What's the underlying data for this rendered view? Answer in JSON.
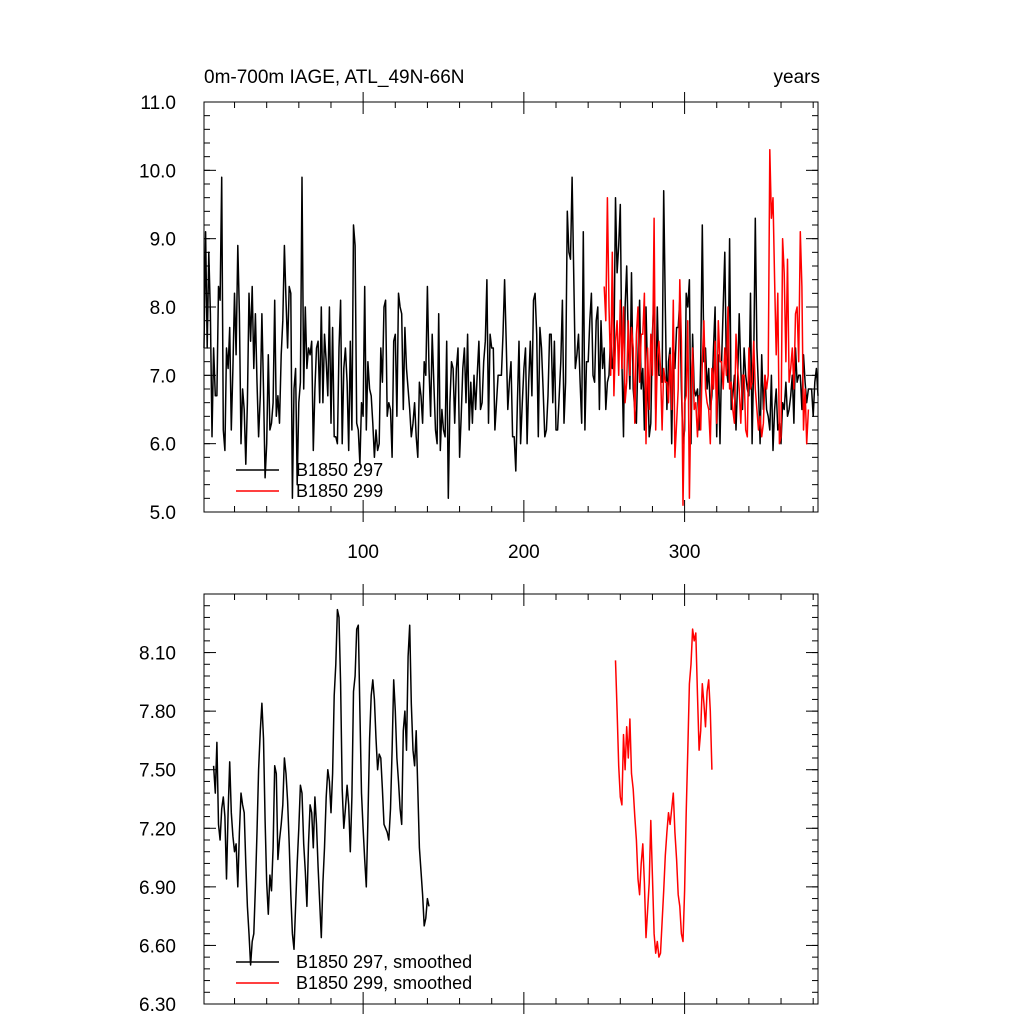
{
  "chart_data": [
    {
      "type": "line",
      "title": "0m-700m IAGE, ATL_49N-66N",
      "units": "years",
      "xlim": [
        1,
        383
      ],
      "ylim": [
        5.0,
        11.0
      ],
      "x_ticks": [
        100,
        200,
        300
      ],
      "y_ticks": [
        "5.0",
        "6.0",
        "7.0",
        "8.0",
        "9.0",
        "10.0",
        "11.0"
      ],
      "legend_position": "bottom-left",
      "series": [
        {
          "name": "B1850 297",
          "color": "#000000",
          "x_start": 1,
          "values": [
            7.4,
            9.1,
            7.4,
            8.8,
            7.9,
            6.1,
            7.4,
            6.7,
            6.7,
            8.3,
            8.1,
            9.9,
            6.2,
            5.9,
            7.4,
            7.1,
            7.7,
            6.2,
            7.1,
            8.2,
            7.3,
            8.9,
            7.9,
            6.0,
            6.8,
            6.5,
            5.7,
            6.6,
            8.2,
            7.5,
            8.3,
            7.1,
            7.9,
            6.9,
            6.1,
            6.7,
            7.9,
            6.8,
            5.5,
            6.0,
            7.3,
            6.2,
            6.3,
            6.6,
            8.1,
            6.4,
            6.7,
            6.3,
            7.3,
            7.8,
            8.9,
            8.1,
            7.4,
            8.3,
            8.2,
            5.2,
            6.8,
            7.1,
            5.4,
            6.6,
            6.9,
            9.9,
            6.8,
            8.0,
            7.1,
            7.4,
            7.3,
            7.5,
            5.9,
            6.8,
            7.4,
            7.5,
            6.6,
            8.0,
            6.6,
            7.6,
            7.2,
            6.7,
            8.0,
            6.3,
            7.7,
            6.1,
            6.1,
            6.0,
            7.4,
            8.1,
            6.0,
            7.1,
            7.4,
            6.9,
            5.9,
            7.5,
            6.2,
            9.2,
            8.9,
            6.3,
            6.2,
            5.7,
            6.6,
            6.4,
            8.3,
            6.2,
            7.2,
            6.8,
            6.7,
            6.3,
            5.8,
            6.2,
            5.9,
            6.0,
            7.4,
            6.9,
            8.0,
            8.1,
            6.4,
            6.6,
            6.5,
            5.8,
            7.5,
            7.6,
            6.4,
            8.2,
            8.0,
            7.9,
            6.5,
            7.7,
            7.1,
            6.8,
            6.5,
            6.1,
            6.3,
            6.6,
            6.1,
            5.8,
            6.9,
            6.7,
            6.3,
            7.2,
            7.0,
            8.3,
            7.1,
            6.4,
            7.6,
            6.9,
            6.2,
            6.0,
            7.9,
            5.9,
            6.5,
            6.2,
            6.1,
            7.5,
            5.2,
            6.6,
            7.2,
            7.1,
            6.3,
            7.1,
            7.4,
            5.8,
            6.4,
            7.1,
            7.4,
            6.6,
            7.6,
            6.2,
            6.9,
            6.3,
            7.0,
            6.5,
            7.0,
            7.5,
            6.5,
            6.6,
            7.2,
            7.5,
            8.4,
            6.3,
            7.6,
            7.4,
            7.4,
            6.2,
            6.6,
            7.0,
            7.0,
            7.0,
            7.6,
            8.4,
            7.5,
            6.5,
            6.9,
            7.2,
            6.1,
            6.1,
            5.6,
            6.6,
            7.5,
            6.0,
            6.6,
            7.1,
            7.4,
            6.0,
            6.9,
            7.5,
            6.7,
            8.1,
            8.2,
            7.6,
            6.1,
            7.7,
            7.4,
            6.8,
            6.1,
            6.2,
            6.7,
            7.6,
            7.6,
            6.6,
            7.5,
            6.2,
            6.2,
            6.7,
            7.2,
            8.1,
            6.3,
            6.9,
            9.4,
            8.8,
            8.7,
            9.9,
            8.5,
            7.1,
            7.3,
            7.6,
            6.9,
            6.3,
            9.1,
            6.2,
            7.2,
            7.2,
            7.8,
            8.2,
            7.0,
            6.9,
            7.8,
            8.0,
            6.5,
            7.8,
            7.1,
            7.4,
            6.5,
            6.9,
            7.0,
            7.6,
            7.1,
            7.3,
            9.6,
            8.5,
            8.9,
            9.5,
            7.2,
            6.1,
            8.0,
            8.6,
            7.5,
            6.8,
            8.5,
            6.8,
            6.5,
            6.3,
            7.3,
            8.1,
            6.8,
            7.1,
            6.2,
            8.0,
            7.0,
            6.1,
            6.3,
            7.6,
            8.2,
            6.5,
            8.0,
            7.0,
            7.0,
            6.9,
            9.7,
            8.0,
            6.5,
            7.2,
            7.4,
            6.0,
            7.5,
            7.1,
            7.7,
            7.7,
            8.1,
            6.8,
            6.0,
            6.2,
            8.2,
            8.0,
            8.4,
            6.0,
            7.6,
            6.8,
            6.7,
            6.8,
            6.2,
            7.2,
            9.2,
            7.2,
            7.4,
            6.8,
            7.1,
            6.5,
            6.7,
            7.4,
            8.0,
            6.1,
            7.3,
            6.0,
            7.2,
            8.0,
            8.8,
            7.1,
            6.9,
            9.0,
            6.5,
            6.7,
            7.0,
            6.2,
            6.9,
            7.9,
            7.1,
            6.5,
            7.4,
            7.0,
            6.8,
            6.7,
            8.2,
            6.0,
            7.2,
            9.3,
            7.4,
            6.8,
            6.0,
            7.3,
            6.5,
            7.0,
            6.5,
            6.4,
            6.2,
            7.0,
            5.9,
            6.5,
            6.8,
            6.2,
            6.3,
            6.0,
            6.6,
            6.5,
            6.9,
            6.4,
            6.5,
            6.7,
            7.0,
            6.3,
            7.4,
            6.9,
            7.0,
            7.0,
            6.5,
            7.3,
            6.9,
            6.6,
            6.8,
            6.8,
            6.8,
            6.4,
            6.9,
            7.1,
            6.7
          ]
        },
        {
          "name": "B1850 299",
          "color": "#ff0000",
          "x_start": 250,
          "values": [
            8.3,
            7.8,
            9.6,
            8.0,
            7.0,
            8.8,
            6.7,
            7.5,
            7.8,
            7.0,
            8.1,
            7.1,
            8.0,
            6.6,
            6.9,
            7.8,
            7.0,
            7.7,
            7.4,
            6.3,
            7.6,
            8.0,
            6.9,
            7.6,
            7.6,
            8.2,
            6.0,
            7.4,
            6.5,
            7.6,
            7.0,
            9.3,
            6.2,
            7.2,
            7.5,
            7.1,
            6.2,
            7.1,
            6.9,
            6.9,
            6.6,
            7.3,
            6.5,
            8.1,
            5.8,
            6.3,
            6.8,
            8.4,
            7.5,
            5.1,
            6.6,
            6.7,
            7.8,
            5.2,
            6.7,
            7.4,
            6.5,
            6.6,
            6.1,
            6.7,
            6.2,
            7.2,
            7.8,
            6.8,
            6.6,
            6.5,
            6.0,
            7.1,
            6.8,
            7.5,
            6.3,
            7.8,
            7.2,
            7.2,
            6.8,
            7.4,
            7.0,
            8.0,
            6.8,
            6.9,
            6.5,
            6.3,
            7.6,
            7.1,
            6.8,
            6.3,
            7.0,
            7.0,
            6.2,
            6.1,
            7.4,
            6.8,
            6.9,
            7.5,
            6.8,
            6.5,
            6.2,
            6.4,
            6.1,
            6.3,
            7.0,
            6.8,
            7.0,
            10.3,
            9.3,
            9.6,
            8.4,
            7.3,
            8.2,
            6.0,
            6.1,
            9.0,
            8.5,
            7.2,
            8.7,
            6.9,
            7.1,
            7.4,
            6.8,
            7.9,
            8.0,
            7.2,
            9.1,
            8.3,
            6.2,
            6.8,
            6.0,
            6.5
          ]
        }
      ]
    },
    {
      "type": "line",
      "xlim": [
        1,
        383
      ],
      "ylim": [
        6.3,
        8.4
      ],
      "y_ticks": [
        "6.30",
        "6.60",
        "6.90",
        "7.20",
        "7.50",
        "7.80",
        "8.10"
      ],
      "legend_position": "bottom-left",
      "series": [
        {
          "name": "B1850 297, smoothed",
          "color": "#000000",
          "x_start": 7,
          "values": [
            7.52,
            7.38,
            7.64,
            7.22,
            7.14,
            7.3,
            7.36,
            7.26,
            6.94,
            7.28,
            7.54,
            7.28,
            7.16,
            7.08,
            7.12,
            6.9,
            7.18,
            7.38,
            7.32,
            7.28,
            7.02,
            6.8,
            6.66,
            6.5,
            6.62,
            6.66,
            6.9,
            7.18,
            7.5,
            7.7,
            7.84,
            7.66,
            7.24,
            6.92,
            6.76,
            6.96,
            6.88,
            7.1,
            7.52,
            7.48,
            7.04,
            7.14,
            7.22,
            7.32,
            7.56,
            7.48,
            7.34,
            7.12,
            6.86,
            6.66,
            6.58,
            6.8,
            7.02,
            7.2,
            7.42,
            7.38,
            7.12,
            6.98,
            6.8,
            7.12,
            7.32,
            7.28,
            7.1,
            7.36,
            7.22,
            7.0,
            6.82,
            6.64,
            6.92,
            7.1,
            7.36,
            7.5,
            7.44,
            7.28,
            7.48,
            7.88,
            8.04,
            8.32,
            8.28,
            7.94,
            7.4,
            7.2,
            7.3,
            7.42,
            7.32,
            7.08,
            7.36,
            7.9,
            7.98,
            8.22,
            8.24,
            7.8,
            7.38,
            7.2,
            7.04,
            6.9,
            7.24,
            7.66,
            7.88,
            7.96,
            7.86,
            7.66,
            7.5,
            7.58,
            7.56,
            7.4,
            7.22,
            7.2,
            7.18,
            7.14,
            7.3,
            7.6,
            7.96,
            7.8,
            7.56,
            7.44,
            7.3,
            7.22,
            7.7,
            7.8,
            7.6,
            8.08,
            8.24,
            7.84,
            7.6,
            7.52,
            7.7,
            7.4,
            7.1,
            6.98,
            6.86,
            6.7,
            6.74,
            6.84,
            6.8
          ]
        },
        {
          "name": "B1850 299, smoothed",
          "color": "#ff0000",
          "x_start": 257,
          "values": [
            8.06,
            7.8,
            7.52,
            7.36,
            7.32,
            7.68,
            7.5,
            7.72,
            7.56,
            7.76,
            7.48,
            7.4,
            7.26,
            7.14,
            6.94,
            6.86,
            7.02,
            7.12,
            6.92,
            6.64,
            6.78,
            6.92,
            7.24,
            6.96,
            6.66,
            6.56,
            6.62,
            6.54,
            6.56,
            6.72,
            6.88,
            7.06,
            7.18,
            7.28,
            7.22,
            7.3,
            7.38,
            7.18,
            7.04,
            6.86,
            6.8,
            6.66,
            6.62,
            6.88,
            7.28,
            7.6,
            7.94,
            8.04,
            8.22,
            8.16,
            8.2,
            7.88,
            7.6,
            7.7,
            7.94,
            7.84,
            7.72,
            7.9,
            7.96,
            7.8,
            7.5
          ]
        }
      ]
    }
  ]
}
